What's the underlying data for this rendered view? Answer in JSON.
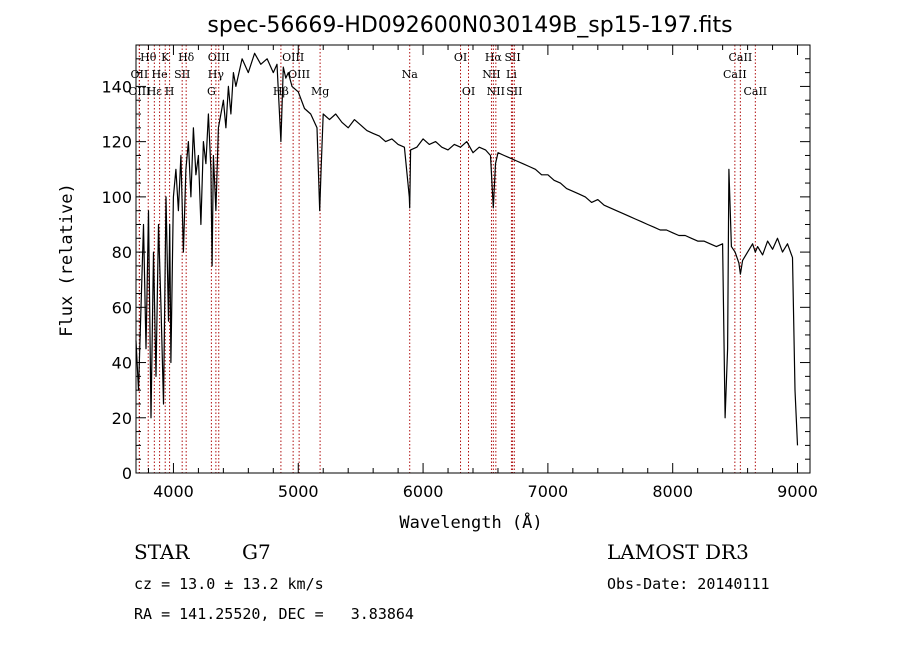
{
  "chart_data": {
    "type": "line",
    "title": "spec-56669-HD092600N030149B_sp15-197.fits",
    "xlabel": "Wavelength (Å)",
    "ylabel": "Flux (relative)",
    "xlim": [
      3700,
      9100
    ],
    "ylim": [
      0,
      155
    ],
    "xticks": [
      4000,
      5000,
      6000,
      7000,
      8000,
      9000
    ],
    "yticks": [
      0,
      20,
      40,
      60,
      80,
      100,
      120,
      140
    ],
    "series": [
      {
        "name": "flux",
        "x": [
          3700,
          3720,
          3740,
          3760,
          3780,
          3800,
          3820,
          3840,
          3860,
          3880,
          3900,
          3920,
          3940,
          3960,
          3970,
          3980,
          4000,
          4020,
          4040,
          4060,
          4080,
          4100,
          4120,
          4140,
          4160,
          4180,
          4200,
          4220,
          4240,
          4260,
          4280,
          4300,
          4310,
          4320,
          4340,
          4360,
          4380,
          4400,
          4420,
          4440,
          4460,
          4480,
          4500,
          4550,
          4600,
          4650,
          4700,
          4750,
          4800,
          4830,
          4861,
          4880,
          4900,
          4920,
          4950,
          5000,
          5050,
          5100,
          5150,
          5172,
          5183,
          5200,
          5250,
          5300,
          5350,
          5400,
          5450,
          5500,
          5550,
          5600,
          5650,
          5700,
          5750,
          5800,
          5850,
          5890,
          5893,
          5896,
          5900,
          5950,
          6000,
          6050,
          6100,
          6150,
          6200,
          6250,
          6300,
          6350,
          6400,
          6450,
          6500,
          6540,
          6563,
          6580,
          6600,
          6650,
          6700,
          6750,
          6800,
          6850,
          6900,
          6950,
          7000,
          7050,
          7100,
          7150,
          7200,
          7250,
          7300,
          7350,
          7400,
          7450,
          7500,
          7550,
          7600,
          7650,
          7700,
          7750,
          7800,
          7850,
          7900,
          7950,
          8000,
          8050,
          8100,
          8150,
          8200,
          8250,
          8300,
          8350,
          8400,
          8420,
          8440,
          8450,
          8470,
          8500,
          8530,
          8542,
          8560,
          8600,
          8640,
          8662,
          8680,
          8720,
          8760,
          8800,
          8840,
          8880,
          8920,
          8960,
          8980,
          9000
        ],
        "values": [
          48,
          30,
          60,
          90,
          45,
          95,
          20,
          80,
          35,
          90,
          60,
          25,
          100,
          55,
          90,
          40,
          100,
          110,
          95,
          115,
          80,
          110,
          120,
          100,
          125,
          108,
          115,
          90,
          120,
          112,
          130,
          110,
          75,
          115,
          95,
          125,
          130,
          135,
          125,
          140,
          130,
          145,
          140,
          150,
          145,
          152,
          148,
          150,
          145,
          148,
          120,
          147,
          143,
          145,
          140,
          138,
          132,
          130,
          125,
          95,
          110,
          130,
          128,
          130,
          127,
          125,
          128,
          126,
          124,
          123,
          122,
          120,
          121,
          119,
          118,
          100,
          96,
          105,
          117,
          118,
          121,
          119,
          120,
          118,
          117,
          119,
          118,
          120,
          116,
          118,
          117,
          115,
          96,
          112,
          116,
          115,
          114,
          113,
          112,
          111,
          110,
          108,
          108,
          106,
          105,
          103,
          102,
          101,
          100,
          98,
          99,
          97,
          96,
          95,
          94,
          93,
          92,
          91,
          90,
          89,
          88,
          88,
          87,
          86,
          86,
          85,
          84,
          84,
          83,
          82,
          83,
          20,
          45,
          110,
          82,
          80,
          76,
          72,
          77,
          80,
          83,
          80,
          82,
          79,
          84,
          81,
          85,
          80,
          83,
          78,
          30,
          10
        ]
      }
    ],
    "line_markers": [
      {
        "label": "Hθ",
        "x": 3798,
        "level": 1
      },
      {
        "label": "OII",
        "x": 3727,
        "level": 2
      },
      {
        "label": "OIII",
        "x": 3727,
        "level": 3
      },
      {
        "label": "Hε",
        "x": 3847,
        "level": 3
      },
      {
        "label": "He",
        "x": 3889,
        "level": 2
      },
      {
        "label": "K",
        "x": 3934,
        "level": 1
      },
      {
        "label": "H",
        "x": 3969,
        "level": 3
      },
      {
        "label": "SII",
        "x": 4070,
        "level": 2
      },
      {
        "label": "Hδ",
        "x": 4102,
        "level": 1
      },
      {
        "label": "OIII",
        "x": 4363,
        "level": 1
      },
      {
        "label": "Hγ",
        "x": 4340,
        "level": 2
      },
      {
        "label": "G",
        "x": 4304,
        "level": 3
      },
      {
        "label": "Hβ",
        "x": 4861,
        "level": 3
      },
      {
        "label": "OIII",
        "x": 4959,
        "level": 1
      },
      {
        "label": "OIII",
        "x": 5007,
        "level": 2
      },
      {
        "label": "Mg",
        "x": 5175,
        "level": 3
      },
      {
        "label": "Na",
        "x": 5893,
        "level": 2
      },
      {
        "label": "OI",
        "x": 6300,
        "level": 1
      },
      {
        "label": "OI",
        "x": 6364,
        "level": 3
      },
      {
        "label": "Hα",
        "x": 6563,
        "level": 1
      },
      {
        "label": "NII",
        "x": 6548,
        "level": 2
      },
      {
        "label": "NII",
        "x": 6583,
        "level": 3
      },
      {
        "label": "SII",
        "x": 6717,
        "level": 1
      },
      {
        "label": "Li",
        "x": 6708,
        "level": 2
      },
      {
        "label": "SII",
        "x": 6731,
        "level": 3
      },
      {
        "label": "CaII",
        "x": 8542,
        "level": 1
      },
      {
        "label": "CaII",
        "x": 8498,
        "level": 2
      },
      {
        "label": "CaII",
        "x": 8662,
        "level": 3
      }
    ],
    "marker_color": "#b01010"
  },
  "info": {
    "class": "STAR",
    "subclass": "G7",
    "survey": "LAMOST DR3",
    "cz": "cz = 13.0 ± 13.2 km/s",
    "obs_date": "Obs-Date: 20140111",
    "radec": "RA = 141.25520, DEC =   3.83864"
  }
}
